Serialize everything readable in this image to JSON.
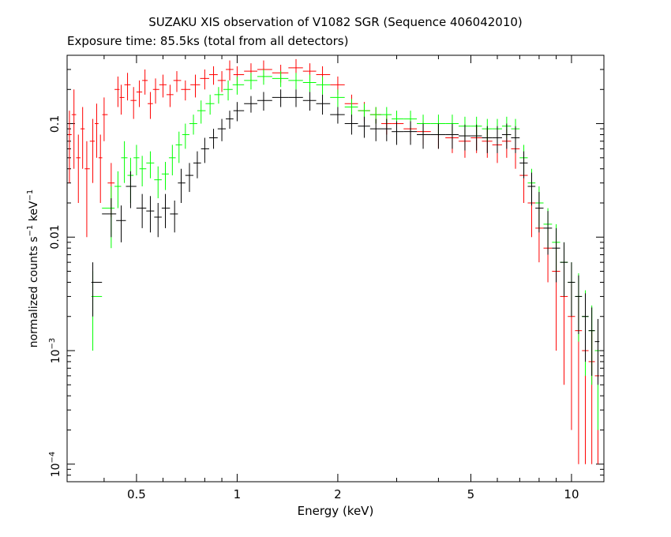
{
  "chart_data": {
    "type": "scatter",
    "title": "SUZAKU XIS observation of V1082 SGR (Sequence 406042010)",
    "subtitle": "Exposure time: 85.5ks (total from all detectors)",
    "xlabel": "Energy (keV)",
    "ylabel": {
      "prefix": "normalized counts s",
      "exp1": "−1",
      "mid": " keV",
      "exp2": "−1"
    },
    "xscale": "log",
    "yscale": "log",
    "xlim": [
      0.31,
      12.5
    ],
    "ylim": [
      7e-05,
      0.4
    ],
    "xticks": [
      {
        "value": 0.5,
        "label": "0.5"
      },
      {
        "value": 1,
        "label": "1"
      },
      {
        "value": 2,
        "label": "2"
      },
      {
        "value": 5,
        "label": "5"
      },
      {
        "value": 10,
        "label": "10"
      }
    ],
    "yticks": [
      {
        "value": 0.1,
        "base": "0.1",
        "exp": ""
      },
      {
        "value": 0.01,
        "base": "0.01",
        "exp": ""
      },
      {
        "value": 0.001,
        "base": "10",
        "exp": "−3"
      },
      {
        "value": 0.0001,
        "base": "10",
        "exp": "−4"
      }
    ],
    "series": [
      {
        "color": "#ff0000",
        "points": [
          [
            0.315,
            0.08,
            0.05
          ],
          [
            0.325,
            0.12,
            0.08
          ],
          [
            0.335,
            0.05,
            0.03
          ],
          [
            0.345,
            0.09,
            0.05
          ],
          [
            0.355,
            0.04,
            0.03
          ],
          [
            0.37,
            0.07,
            0.04
          ],
          [
            0.38,
            0.1,
            0.05
          ],
          [
            0.39,
            0.05,
            0.03
          ],
          [
            0.4,
            0.12,
            0.05
          ],
          [
            0.42,
            0.03,
            0.015
          ],
          [
            0.44,
            0.2,
            0.06
          ],
          [
            0.45,
            0.17,
            0.05
          ],
          [
            0.47,
            0.22,
            0.06
          ],
          [
            0.49,
            0.16,
            0.05
          ],
          [
            0.51,
            0.19,
            0.05
          ],
          [
            0.53,
            0.24,
            0.06
          ],
          [
            0.55,
            0.15,
            0.04
          ],
          [
            0.57,
            0.2,
            0.05
          ],
          [
            0.6,
            0.22,
            0.05
          ],
          [
            0.63,
            0.18,
            0.04
          ],
          [
            0.66,
            0.24,
            0.05
          ],
          [
            0.7,
            0.2,
            0.04
          ],
          [
            0.75,
            0.22,
            0.05
          ],
          [
            0.8,
            0.25,
            0.05
          ],
          [
            0.85,
            0.27,
            0.05
          ],
          [
            0.9,
            0.24,
            0.05
          ],
          [
            0.95,
            0.3,
            0.06
          ],
          [
            1.0,
            0.27,
            0.05
          ],
          [
            1.1,
            0.29,
            0.05
          ],
          [
            1.2,
            0.3,
            0.06
          ],
          [
            1.35,
            0.28,
            0.05
          ],
          [
            1.5,
            0.31,
            0.06
          ],
          [
            1.65,
            0.29,
            0.05
          ],
          [
            1.8,
            0.27,
            0.05
          ],
          [
            2.0,
            0.22,
            0.04
          ],
          [
            2.2,
            0.15,
            0.03
          ],
          [
            2.4,
            0.13,
            0.025
          ],
          [
            2.6,
            0.12,
            0.02
          ],
          [
            2.8,
            0.1,
            0.02
          ],
          [
            3.0,
            0.1,
            0.02
          ],
          [
            3.3,
            0.09,
            0.02
          ],
          [
            3.6,
            0.085,
            0.02
          ],
          [
            4.0,
            0.08,
            0.02
          ],
          [
            4.4,
            0.075,
            0.02
          ],
          [
            4.8,
            0.07,
            0.02
          ],
          [
            5.2,
            0.075,
            0.02
          ],
          [
            5.6,
            0.07,
            0.02
          ],
          [
            6.0,
            0.065,
            0.02
          ],
          [
            6.4,
            0.07,
            0.02
          ],
          [
            6.8,
            0.06,
            0.02
          ],
          [
            7.2,
            0.035,
            0.015
          ],
          [
            7.6,
            0.02,
            0.01
          ],
          [
            8.0,
            0.012,
            0.006
          ],
          [
            8.5,
            0.008,
            0.004
          ],
          [
            9.0,
            0.005,
            0.004
          ],
          [
            9.5,
            0.003,
            0.0025
          ],
          [
            10.0,
            0.002,
            0.0018
          ],
          [
            10.5,
            0.0015,
            0.0014
          ],
          [
            11.0,
            0.001,
            0.0009
          ],
          [
            11.5,
            0.0008,
            0.0007
          ],
          [
            12.0,
            0.0006,
            0.0005
          ]
        ]
      },
      {
        "color": "#00ff00",
        "points": [
          [
            0.37,
            0.003,
            0.002
          ],
          [
            0.42,
            0.018,
            0.01
          ],
          [
            0.44,
            0.028,
            0.01
          ],
          [
            0.46,
            0.05,
            0.02
          ],
          [
            0.48,
            0.035,
            0.015
          ],
          [
            0.5,
            0.05,
            0.015
          ],
          [
            0.52,
            0.04,
            0.012
          ],
          [
            0.55,
            0.045,
            0.012
          ],
          [
            0.58,
            0.032,
            0.01
          ],
          [
            0.61,
            0.036,
            0.01
          ],
          [
            0.64,
            0.05,
            0.015
          ],
          [
            0.67,
            0.065,
            0.02
          ],
          [
            0.7,
            0.08,
            0.02
          ],
          [
            0.74,
            0.1,
            0.02
          ],
          [
            0.78,
            0.13,
            0.03
          ],
          [
            0.83,
            0.15,
            0.03
          ],
          [
            0.88,
            0.18,
            0.03
          ],
          [
            0.94,
            0.2,
            0.04
          ],
          [
            1.0,
            0.22,
            0.04
          ],
          [
            1.1,
            0.24,
            0.04
          ],
          [
            1.2,
            0.26,
            0.04
          ],
          [
            1.35,
            0.25,
            0.04
          ],
          [
            1.5,
            0.24,
            0.04
          ],
          [
            1.65,
            0.23,
            0.04
          ],
          [
            1.8,
            0.22,
            0.04
          ],
          [
            2.0,
            0.17,
            0.03
          ],
          [
            2.2,
            0.14,
            0.025
          ],
          [
            2.4,
            0.13,
            0.02
          ],
          [
            2.6,
            0.12,
            0.02
          ],
          [
            2.8,
            0.12,
            0.02
          ],
          [
            3.0,
            0.11,
            0.02
          ],
          [
            3.3,
            0.11,
            0.02
          ],
          [
            3.6,
            0.1,
            0.02
          ],
          [
            4.0,
            0.1,
            0.02
          ],
          [
            4.4,
            0.1,
            0.02
          ],
          [
            4.8,
            0.095,
            0.02
          ],
          [
            5.2,
            0.095,
            0.02
          ],
          [
            5.6,
            0.09,
            0.02
          ],
          [
            6.0,
            0.09,
            0.02
          ],
          [
            6.4,
            0.095,
            0.02
          ],
          [
            6.8,
            0.09,
            0.02
          ],
          [
            7.2,
            0.05,
            0.015
          ],
          [
            7.6,
            0.03,
            0.01
          ],
          [
            8.0,
            0.02,
            0.008
          ],
          [
            8.5,
            0.013,
            0.005
          ],
          [
            9.0,
            0.009,
            0.004
          ],
          [
            9.5,
            0.006,
            0.003
          ],
          [
            10.0,
            0.004,
            0.002
          ],
          [
            10.5,
            0.003,
            0.0018
          ],
          [
            11.0,
            0.002,
            0.0014
          ],
          [
            11.5,
            0.0015,
            0.001
          ],
          [
            12.0,
            0.001,
            0.0008
          ]
        ]
      },
      {
        "color": "#000000",
        "points": [
          [
            0.37,
            0.004,
            0.002
          ],
          [
            0.42,
            0.016,
            0.006
          ],
          [
            0.45,
            0.014,
            0.005
          ],
          [
            0.48,
            0.028,
            0.01
          ],
          [
            0.52,
            0.018,
            0.006
          ],
          [
            0.55,
            0.017,
            0.006
          ],
          [
            0.58,
            0.015,
            0.005
          ],
          [
            0.61,
            0.018,
            0.006
          ],
          [
            0.65,
            0.016,
            0.005
          ],
          [
            0.68,
            0.03,
            0.01
          ],
          [
            0.72,
            0.035,
            0.01
          ],
          [
            0.76,
            0.045,
            0.012
          ],
          [
            0.8,
            0.06,
            0.015
          ],
          [
            0.85,
            0.075,
            0.015
          ],
          [
            0.9,
            0.09,
            0.02
          ],
          [
            0.95,
            0.11,
            0.02
          ],
          [
            1.0,
            0.13,
            0.025
          ],
          [
            1.1,
            0.15,
            0.025
          ],
          [
            1.2,
            0.16,
            0.03
          ],
          [
            1.35,
            0.17,
            0.03
          ],
          [
            1.5,
            0.17,
            0.03
          ],
          [
            1.65,
            0.16,
            0.03
          ],
          [
            1.8,
            0.15,
            0.03
          ],
          [
            2.0,
            0.12,
            0.02
          ],
          [
            2.2,
            0.1,
            0.02
          ],
          [
            2.4,
            0.095,
            0.02
          ],
          [
            2.6,
            0.09,
            0.02
          ],
          [
            2.8,
            0.09,
            0.02
          ],
          [
            3.0,
            0.085,
            0.02
          ],
          [
            3.3,
            0.085,
            0.02
          ],
          [
            3.6,
            0.08,
            0.02
          ],
          [
            4.0,
            0.08,
            0.02
          ],
          [
            4.4,
            0.08,
            0.02
          ],
          [
            4.8,
            0.078,
            0.02
          ],
          [
            5.2,
            0.078,
            0.02
          ],
          [
            5.6,
            0.075,
            0.02
          ],
          [
            6.0,
            0.075,
            0.02
          ],
          [
            6.4,
            0.08,
            0.02
          ],
          [
            6.8,
            0.075,
            0.02
          ],
          [
            7.2,
            0.045,
            0.012
          ],
          [
            7.6,
            0.028,
            0.009
          ],
          [
            8.0,
            0.018,
            0.007
          ],
          [
            8.5,
            0.012,
            0.005
          ],
          [
            9.0,
            0.008,
            0.004
          ],
          [
            9.5,
            0.006,
            0.003
          ],
          [
            10.0,
            0.004,
            0.002
          ],
          [
            10.5,
            0.003,
            0.0016
          ],
          [
            11.0,
            0.002,
            0.0012
          ],
          [
            11.5,
            0.0015,
            0.0009
          ],
          [
            12.0,
            0.0012,
            0.0007
          ]
        ]
      }
    ]
  }
}
